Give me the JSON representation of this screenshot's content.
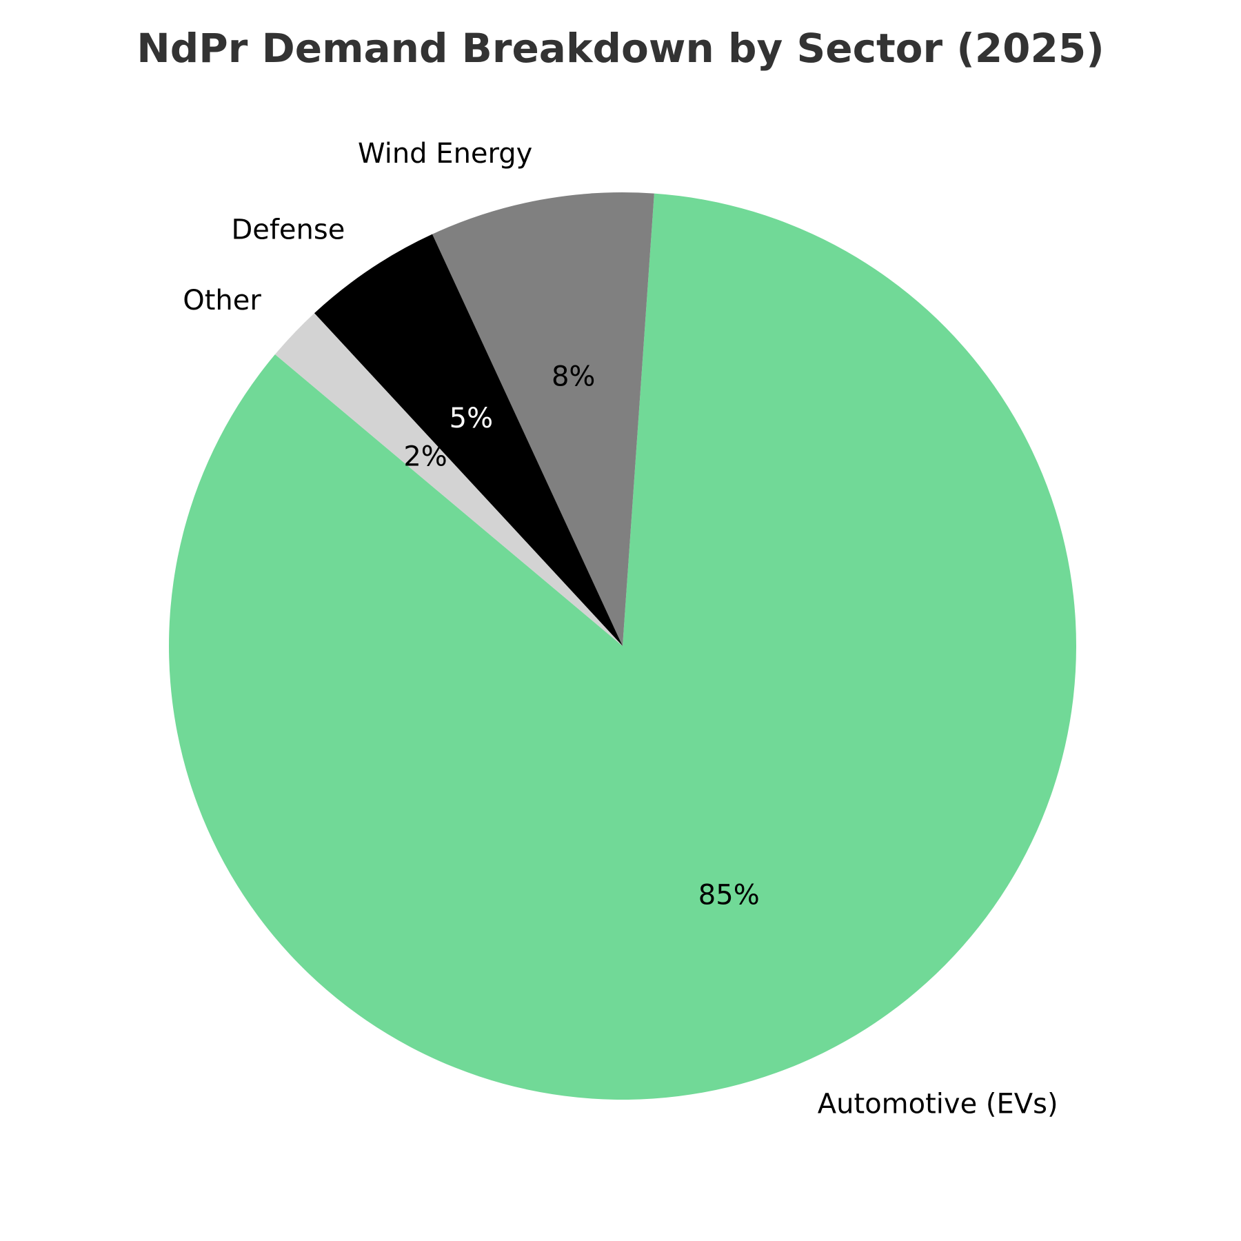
{
  "chart_data": {
    "type": "pie",
    "title": "NdPr Demand Breakdown by Sector (2025)",
    "start_angle_deg": 140,
    "direction": "counterclockwise",
    "slices": [
      {
        "label": "Automotive (EVs)",
        "value": 85,
        "pct_label": "85%",
        "color": "#71d997",
        "pct_color": "#000000"
      },
      {
        "label": "Wind Energy",
        "value": 8,
        "pct_label": "8%",
        "color": "#808080",
        "pct_color": "#000000"
      },
      {
        "label": "Defense",
        "value": 5,
        "pct_label": "5%",
        "color": "#000000",
        "pct_color": "#ffffff"
      },
      {
        "label": "Other",
        "value": 2,
        "pct_label": "2%",
        "color": "#d3d3d3",
        "pct_color": "#000000"
      }
    ]
  }
}
